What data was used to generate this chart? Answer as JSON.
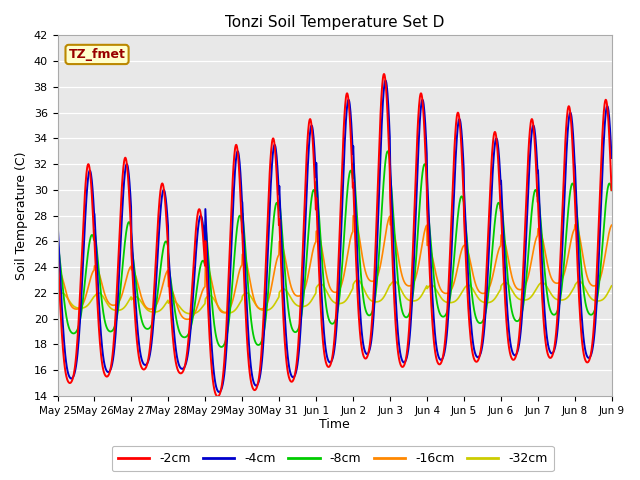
{
  "title": "Tonzi Soil Temperature Set D",
  "xlabel": "Time",
  "ylabel": "Soil Temperature (C)",
  "ylim": [
    14,
    42
  ],
  "yticks": [
    14,
    16,
    18,
    20,
    22,
    24,
    26,
    28,
    30,
    32,
    34,
    36,
    38,
    40,
    42
  ],
  "series_colors": [
    "#ff0000",
    "#0000cc",
    "#00cc00",
    "#ff8800",
    "#cccc00"
  ],
  "series_labels": [
    "-2cm",
    "-4cm",
    "-8cm",
    "-16cm",
    "-32cm"
  ],
  "background_color": "#e8e8e8",
  "n_days": 15,
  "xtick_labels": [
    "May 25",
    "May 26",
    "May 27",
    "May 28",
    "May 29",
    "May 30",
    "May 31",
    "Jun 1",
    "Jun 2",
    "Jun 3",
    "Jun 4",
    "Jun 5",
    "Jun 6",
    "Jun 7",
    "Jun 8",
    "Jun 9"
  ],
  "points_per_day": 96,
  "amp_2cm": [
    10.0,
    10.0,
    8.5,
    7.5,
    11.5,
    11.5,
    12.0,
    12.5,
    13.0,
    12.5,
    11.5,
    10.5,
    11.0,
    11.5,
    12.0
  ],
  "mean_2cm": [
    22.0,
    22.5,
    22.0,
    21.0,
    22.0,
    22.5,
    23.5,
    25.0,
    26.0,
    25.0,
    24.5,
    24.0,
    24.5,
    25.0,
    25.0
  ],
  "amp_4cm": [
    9.5,
    9.5,
    8.0,
    7.0,
    11.0,
    11.0,
    11.5,
    12.0,
    12.5,
    12.0,
    11.0,
    10.0,
    10.5,
    11.0,
    11.5
  ],
  "mean_4cm": [
    22.0,
    22.5,
    22.0,
    21.0,
    22.0,
    22.5,
    23.5,
    25.0,
    26.0,
    25.0,
    24.5,
    24.0,
    24.5,
    25.0,
    25.0
  ],
  "amp_8cm": [
    4.5,
    5.0,
    4.0,
    3.5,
    6.0,
    6.5,
    6.5,
    7.0,
    7.5,
    7.0,
    5.5,
    5.5,
    6.0,
    6.0,
    6.0
  ],
  "mean_8cm": [
    22.0,
    22.5,
    22.0,
    21.0,
    22.0,
    22.5,
    23.5,
    24.5,
    25.5,
    25.0,
    24.0,
    23.5,
    24.0,
    24.5,
    24.5
  ],
  "amp_16cm": [
    1.8,
    1.8,
    1.8,
    1.5,
    2.2,
    2.5,
    2.5,
    2.8,
    3.0,
    2.8,
    2.2,
    2.2,
    2.5,
    2.5,
    2.8
  ],
  "mean_16cm": [
    22.0,
    22.3,
    22.0,
    21.0,
    22.0,
    22.5,
    23.5,
    24.0,
    25.0,
    24.5,
    23.5,
    23.5,
    24.0,
    24.5,
    24.5
  ],
  "amp_32cm": [
    0.7,
    0.8,
    0.7,
    0.6,
    0.8,
    0.8,
    0.8,
    0.9,
    1.0,
    0.9,
    0.8,
    0.8,
    0.8,
    0.8,
    0.9
  ],
  "mean_32cm": [
    21.3,
    21.2,
    21.0,
    20.8,
    21.0,
    21.2,
    21.5,
    21.8,
    22.0,
    22.0,
    21.8,
    21.8,
    22.0,
    22.0,
    22.0
  ]
}
